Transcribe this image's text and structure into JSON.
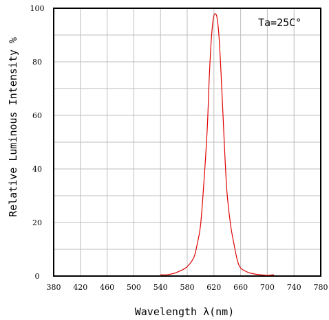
{
  "chart_data": {
    "type": "line",
    "title": "",
    "xlabel": "Wavelength λ(nm)",
    "ylabel": "Relative Luminous Intensity %",
    "annotation": "Ta=25C°",
    "xlim": [
      380,
      780
    ],
    "ylim": [
      0,
      100
    ],
    "x_ticks": [
      "380",
      "420",
      "460",
      "500",
      "540",
      "580",
      "620",
      "660",
      "700",
      "740",
      "780"
    ],
    "y_ticks": [
      "0",
      "20",
      "40",
      "60",
      "80",
      "100"
    ],
    "grid": true,
    "series": [
      {
        "color": "#e00000",
        "x": [
          540,
          550,
          560,
          570,
          580,
          590,
          595,
          600,
          605,
          610,
          613,
          616,
          619,
          622,
          625,
          628,
          631,
          634,
          637,
          640,
          645,
          650,
          655,
          660,
          670,
          680,
          690,
          700,
          710
        ],
        "y": [
          0.5,
          0.5,
          1,
          2,
          3.5,
          7,
          12,
          19,
          35,
          55,
          74,
          88,
          96,
          98,
          96,
          88,
          74,
          58,
          42,
          30,
          19,
          12,
          6,
          3,
          1.5,
          0.8,
          0.5,
          0.3,
          0.5
        ]
      }
    ]
  }
}
